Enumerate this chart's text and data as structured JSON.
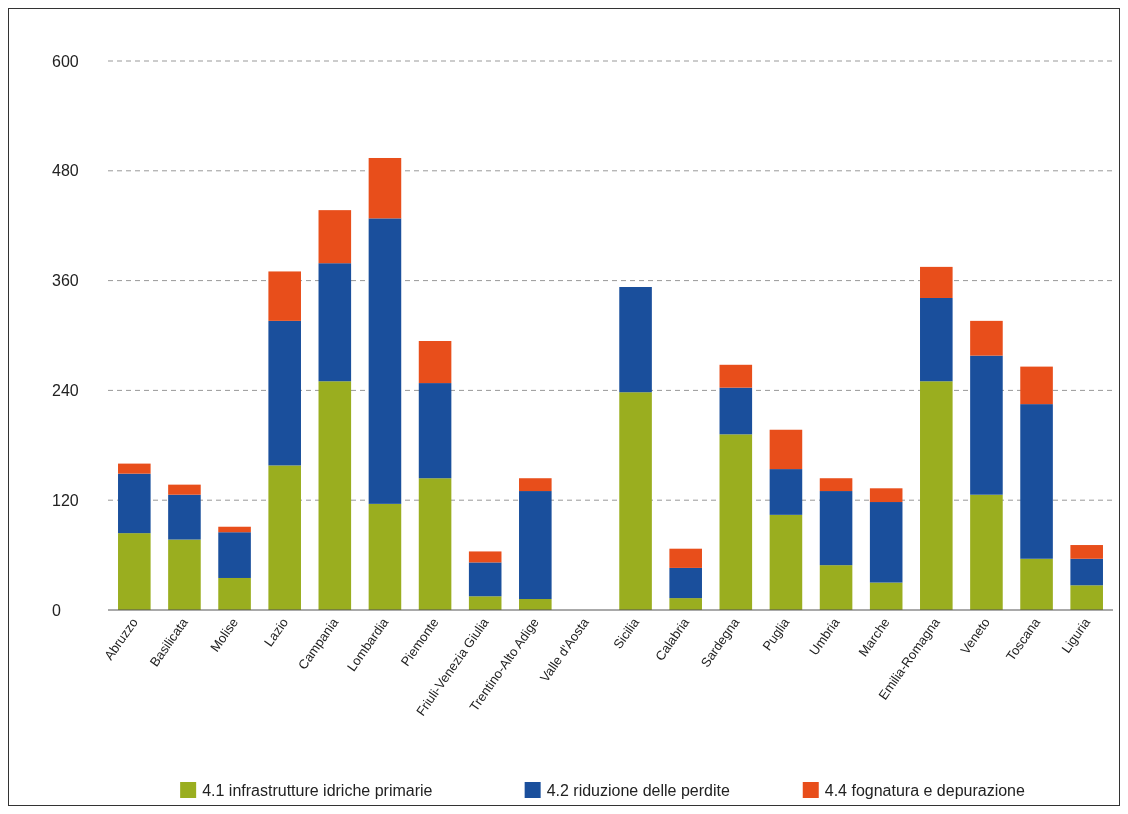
{
  "chart_data": {
    "type": "bar",
    "stacked": true,
    "categories": [
      "Abruzzo",
      "Basilicata",
      "Molise",
      "Lazio",
      "Campania",
      "Lombardia",
      "Piemonte",
      "Friuli-Venezia Giulia",
      "Trentino-Alto Adige",
      "Valle d'Aosta",
      "Sicilia",
      "Calabria",
      "Sardegna",
      "Puglia",
      "Umbria",
      "Marche",
      "Emilia-Romagna",
      "Veneto",
      "Toscana",
      "Liguria"
    ],
    "series": [
      {
        "name": "4.1 infrastrutture idriche primarie",
        "color": "#9aae1f",
        "values": [
          84,
          77,
          35,
          158,
          250,
          116,
          144,
          15,
          12,
          0,
          238,
          13,
          192,
          104,
          49,
          30,
          250,
          126,
          56,
          27
        ]
      },
      {
        "name": "4.2 riduzione delle perdite",
        "color": "#1a4f9c",
        "values": [
          65,
          49,
          50,
          158,
          129,
          312,
          104,
          37,
          118,
          0,
          115,
          33,
          51,
          50,
          81,
          88,
          91,
          152,
          169,
          29
        ]
      },
      {
        "name": "4.4 fognatura e depurazione",
        "color": "#e84e1b",
        "values": [
          11,
          11,
          6,
          54,
          58,
          66,
          46,
          12,
          14,
          0,
          0,
          21,
          25,
          43,
          14,
          15,
          34,
          38,
          41,
          15
        ]
      }
    ],
    "ylim": [
      0,
      600
    ],
    "yticks": [
      0,
      120,
      240,
      360,
      480,
      600
    ],
    "grid": "y",
    "legend": "bottom"
  }
}
